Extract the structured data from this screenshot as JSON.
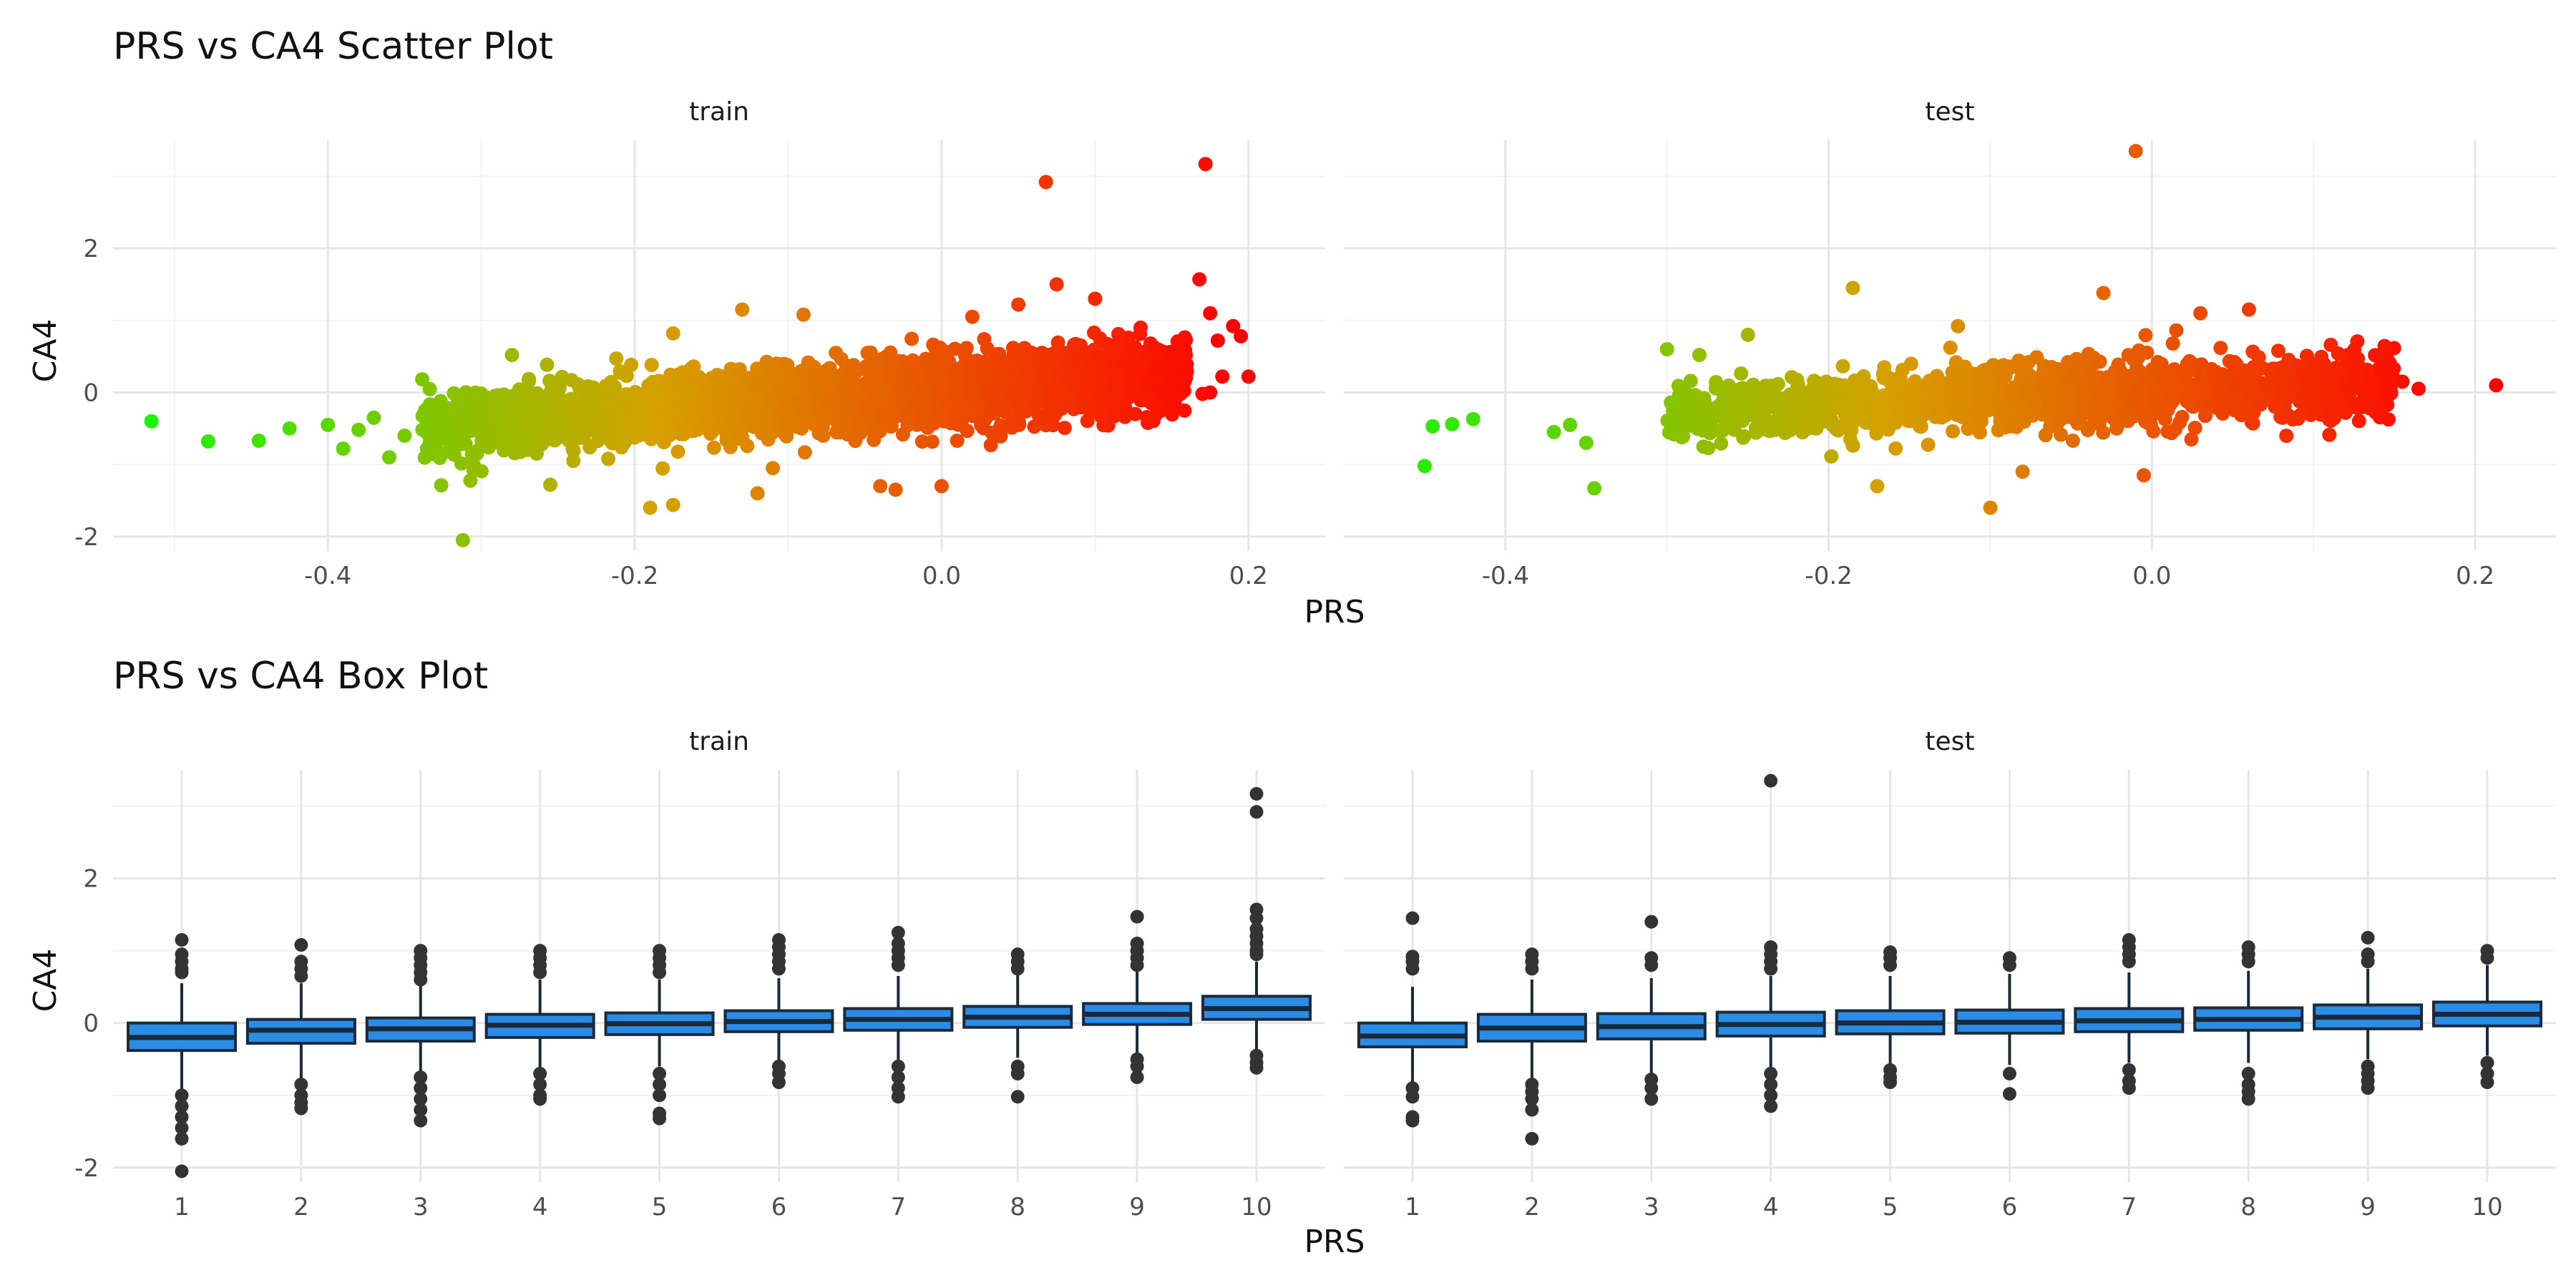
{
  "scatter": {
    "title": "PRS vs CA4 Scatter Plot",
    "xlabel": "PRS",
    "ylabel": "CA4"
  },
  "box": {
    "title": "PRS vs CA4 Box Plot",
    "xlabel": "PRS",
    "ylabel": "CA4"
  },
  "colors": {
    "gradient_low": "#00ff00",
    "gradient_high": "#ff0000",
    "box_fill": "#2b8ce6",
    "box_line": "#1a2a3a",
    "outlier": "#333333"
  },
  "chart_data": [
    {
      "type": "scatter",
      "facet": "train",
      "title": "PRS vs CA4 Scatter Plot",
      "xlabel": "PRS",
      "ylabel": "CA4",
      "xlim": [
        -0.54,
        0.25
      ],
      "ylim": [
        -2.2,
        3.5
      ],
      "xticks": [
        -0.4,
        -0.2,
        0.0,
        0.2
      ],
      "xtick_labels": [
        "-0.4",
        "-0.2",
        "0.0",
        "0.2"
      ],
      "yticks": [
        -2,
        0,
        2
      ],
      "ytick_labels": [
        "-2",
        "0",
        "2"
      ],
      "color": "gradient by PRS, green (low) to red (high)",
      "bulk": {
        "x_min": -0.34,
        "x_max": 0.16,
        "y_intercept": 0.02,
        "slope": 1.45,
        "spread": 0.3,
        "count": 2600
      },
      "points": [
        [
          -0.515,
          -0.4
        ],
        [
          -0.478,
          -0.68
        ],
        [
          -0.445,
          -0.67
        ],
        [
          -0.425,
          -0.5
        ],
        [
          -0.4,
          -0.45
        ],
        [
          -0.39,
          -0.78
        ],
        [
          -0.38,
          -0.52
        ],
        [
          -0.37,
          -0.35
        ],
        [
          -0.36,
          -0.9
        ],
        [
          -0.35,
          -0.6
        ],
        [
          -0.312,
          -2.05
        ],
        [
          -0.305,
          -1.08
        ],
        [
          -0.28,
          0.52
        ],
        [
          -0.255,
          -1.28
        ],
        [
          -0.24,
          -0.95
        ],
        [
          -0.19,
          -1.6
        ],
        [
          -0.175,
          -1.56
        ],
        [
          -0.175,
          0.82
        ],
        [
          -0.12,
          -1.4
        ],
        [
          -0.11,
          -1.05
        ],
        [
          -0.13,
          1.15
        ],
        [
          -0.09,
          1.08
        ],
        [
          -0.04,
          -1.3
        ],
        [
          -0.03,
          -1.35
        ],
        [
          0.0,
          -1.3
        ],
        [
          0.02,
          1.05
        ],
        [
          0.05,
          1.22
        ],
        [
          0.075,
          1.5
        ],
        [
          0.1,
          1.3
        ],
        [
          0.068,
          2.92
        ],
        [
          0.172,
          3.17
        ],
        [
          0.168,
          1.57
        ],
        [
          0.175,
          1.1
        ],
        [
          0.19,
          0.92
        ],
        [
          0.195,
          0.78
        ],
        [
          0.18,
          0.72
        ],
        [
          0.2,
          0.22
        ],
        [
          0.183,
          0.22
        ],
        [
          0.175,
          0.0
        ],
        [
          0.17,
          -0.02
        ]
      ]
    },
    {
      "type": "scatter",
      "facet": "test",
      "title": "PRS vs CA4 Scatter Plot",
      "xlabel": "PRS",
      "ylabel": "CA4",
      "xlim": [
        -0.5,
        0.25
      ],
      "ylim": [
        -2.2,
        3.5
      ],
      "xticks": [
        -0.4,
        -0.2,
        0.0,
        0.2
      ],
      "xtick_labels": [
        "-0.4",
        "-0.2",
        "0.0",
        "0.2"
      ],
      "yticks": [
        -2,
        0,
        2
      ],
      "ytick_labels": [
        "-2",
        "0",
        "2"
      ],
      "color": "gradient by PRS, green (low) to red (high)",
      "bulk": {
        "x_min": -0.3,
        "x_max": 0.15,
        "y_intercept": 0.0,
        "slope": 0.95,
        "spread": 0.28,
        "count": 1500
      },
      "points": [
        [
          -0.45,
          -1.02
        ],
        [
          -0.445,
          -0.47
        ],
        [
          -0.433,
          -0.44
        ],
        [
          -0.42,
          -0.37
        ],
        [
          -0.37,
          -0.55
        ],
        [
          -0.36,
          -0.45
        ],
        [
          -0.35,
          -0.7
        ],
        [
          -0.345,
          -1.33
        ],
        [
          -0.3,
          0.6
        ],
        [
          -0.28,
          0.52
        ],
        [
          -0.25,
          0.8
        ],
        [
          -0.185,
          1.45
        ],
        [
          -0.17,
          -1.3
        ],
        [
          -0.12,
          0.92
        ],
        [
          -0.1,
          -1.6
        ],
        [
          -0.08,
          -1.1
        ],
        [
          -0.03,
          1.38
        ],
        [
          -0.01,
          3.35
        ],
        [
          -0.005,
          -1.15
        ],
        [
          0.03,
          1.1
        ],
        [
          0.06,
          1.15
        ],
        [
          0.155,
          0.15
        ],
        [
          0.165,
          0.05
        ],
        [
          0.213,
          0.1
        ]
      ]
    },
    {
      "type": "box",
      "facet": "train",
      "title": "PRS vs CA4 Box Plot",
      "xlabel": "PRS",
      "ylabel": "CA4",
      "categories": [
        "1",
        "2",
        "3",
        "4",
        "5",
        "6",
        "7",
        "8",
        "9",
        "10"
      ],
      "ylim": [
        -2.2,
        3.5
      ],
      "yticks": [
        -2,
        0,
        2
      ],
      "ytick_labels": [
        "-2",
        "0",
        "2"
      ],
      "boxes": [
        {
          "q1": -0.38,
          "median": -0.2,
          "q3": 0.0,
          "whisker_low": -0.95,
          "whisker_high": 0.55,
          "outliers": [
            1.15,
            0.95,
            0.85,
            0.75,
            0.7,
            -1.0,
            -1.15,
            -1.3,
            -1.45,
            -1.6,
            -2.05
          ]
        },
        {
          "q1": -0.28,
          "median": -0.1,
          "q3": 0.05,
          "whisker_low": -0.78,
          "whisker_high": 0.55,
          "outliers": [
            1.08,
            0.85,
            0.75,
            0.65,
            -0.85,
            -1.0,
            -1.1,
            -1.18
          ]
        },
        {
          "q1": -0.25,
          "median": -0.08,
          "q3": 0.07,
          "whisker_low": -0.7,
          "whisker_high": 0.55,
          "outliers": [
            1.0,
            0.9,
            0.8,
            0.7,
            0.6,
            -0.75,
            -0.9,
            -1.05,
            -1.2,
            -1.35
          ]
        },
        {
          "q1": -0.2,
          "median": -0.03,
          "q3": 0.12,
          "whisker_low": -0.62,
          "whisker_high": 0.6,
          "outliers": [
            1.0,
            0.9,
            0.8,
            0.7,
            -0.7,
            -0.85,
            -1.0,
            -1.05
          ]
        },
        {
          "q1": -0.16,
          "median": -0.01,
          "q3": 0.14,
          "whisker_low": -0.6,
          "whisker_high": 0.6,
          "outliers": [
            1.0,
            0.9,
            0.8,
            0.7,
            -0.7,
            -0.85,
            -1.0,
            -1.25,
            -1.32
          ]
        },
        {
          "q1": -0.12,
          "median": 0.02,
          "q3": 0.17,
          "whisker_low": -0.55,
          "whisker_high": 0.62,
          "outliers": [
            1.15,
            1.05,
            0.95,
            0.85,
            0.75,
            -0.6,
            -0.7,
            -0.82
          ]
        },
        {
          "q1": -0.1,
          "median": 0.05,
          "q3": 0.2,
          "whisker_low": -0.52,
          "whisker_high": 0.65,
          "outliers": [
            1.25,
            1.1,
            1.0,
            0.9,
            0.8,
            -0.6,
            -0.75,
            -0.9,
            -1.02
          ]
        },
        {
          "q1": -0.06,
          "median": 0.08,
          "q3": 0.23,
          "whisker_low": -0.48,
          "whisker_high": 0.7,
          "outliers": [
            0.95,
            0.85,
            0.75,
            -0.6,
            -0.7,
            -1.02
          ]
        },
        {
          "q1": -0.02,
          "median": 0.12,
          "q3": 0.27,
          "whisker_low": -0.45,
          "whisker_high": 0.72,
          "outliers": [
            1.47,
            1.1,
            1.0,
            0.9,
            0.8,
            -0.5,
            -0.6,
            -0.75
          ]
        },
        {
          "q1": 0.05,
          "median": 0.2,
          "q3": 0.37,
          "whisker_low": -0.4,
          "whisker_high": 0.85,
          "outliers": [
            3.17,
            2.92,
            1.57,
            1.45,
            1.3,
            1.2,
            1.1,
            1.0,
            0.95,
            -0.45,
            -0.55,
            -0.62
          ]
        }
      ]
    },
    {
      "type": "box",
      "facet": "test",
      "title": "PRS vs CA4 Box Plot",
      "xlabel": "PRS",
      "ylabel": "CA4",
      "categories": [
        "1",
        "2",
        "3",
        "4",
        "5",
        "6",
        "7",
        "8",
        "9",
        "10"
      ],
      "ylim": [
        -2.2,
        3.5
      ],
      "yticks": [
        -2,
        0,
        2
      ],
      "ytick_labels": [
        "-2",
        "0",
        "2"
      ],
      "boxes": [
        {
          "q1": -0.33,
          "median": -0.18,
          "q3": 0.0,
          "whisker_low": -0.85,
          "whisker_high": 0.5,
          "outliers": [
            1.45,
            0.92,
            0.85,
            0.75,
            -0.9,
            -1.02,
            -1.3,
            -1.35
          ]
        },
        {
          "q1": -0.25,
          "median": -0.07,
          "q3": 0.12,
          "whisker_low": -0.78,
          "whisker_high": 0.6,
          "outliers": [
            0.95,
            0.85,
            0.75,
            -0.85,
            -0.95,
            -1.05,
            -1.2,
            -1.6
          ]
        },
        {
          "q1": -0.22,
          "median": -0.05,
          "q3": 0.13,
          "whisker_low": -0.72,
          "whisker_high": 0.62,
          "outliers": [
            1.4,
            0.9,
            0.8,
            -0.78,
            -0.9,
            -1.05
          ]
        },
        {
          "q1": -0.18,
          "median": -0.02,
          "q3": 0.15,
          "whisker_low": -0.65,
          "whisker_high": 0.65,
          "outliers": [
            3.35,
            1.05,
            0.95,
            0.85,
            0.75,
            -0.7,
            -0.85,
            -1.0,
            -1.15
          ]
        },
        {
          "q1": -0.15,
          "median": 0.0,
          "q3": 0.17,
          "whisker_low": -0.6,
          "whisker_high": 0.65,
          "outliers": [
            0.98,
            0.9,
            0.8,
            -0.65,
            -0.75,
            -0.82
          ]
        },
        {
          "q1": -0.14,
          "median": 0.01,
          "q3": 0.18,
          "whisker_low": -0.58,
          "whisker_high": 0.68,
          "outliers": [
            0.9,
            0.8,
            -0.7,
            -0.98
          ]
        },
        {
          "q1": -0.12,
          "median": 0.03,
          "q3": 0.2,
          "whisker_low": -0.55,
          "whisker_high": 0.7,
          "outliers": [
            1.15,
            1.05,
            0.95,
            0.85,
            -0.65,
            -0.8,
            -0.9
          ]
        },
        {
          "q1": -0.1,
          "median": 0.05,
          "q3": 0.21,
          "whisker_low": -0.55,
          "whisker_high": 0.72,
          "outliers": [
            1.05,
            0.95,
            0.85,
            -0.7,
            -0.85,
            -0.95,
            -1.05
          ]
        },
        {
          "q1": -0.08,
          "median": 0.08,
          "q3": 0.25,
          "whisker_low": -0.5,
          "whisker_high": 0.75,
          "outliers": [
            1.18,
            0.95,
            0.85,
            -0.6,
            -0.7,
            -0.8,
            -0.9
          ]
        },
        {
          "q1": -0.04,
          "median": 0.12,
          "q3": 0.29,
          "whisker_low": -0.45,
          "whisker_high": 0.8,
          "outliers": [
            1.0,
            0.9,
            -0.55,
            -0.7,
            -0.82
          ]
        }
      ]
    }
  ]
}
